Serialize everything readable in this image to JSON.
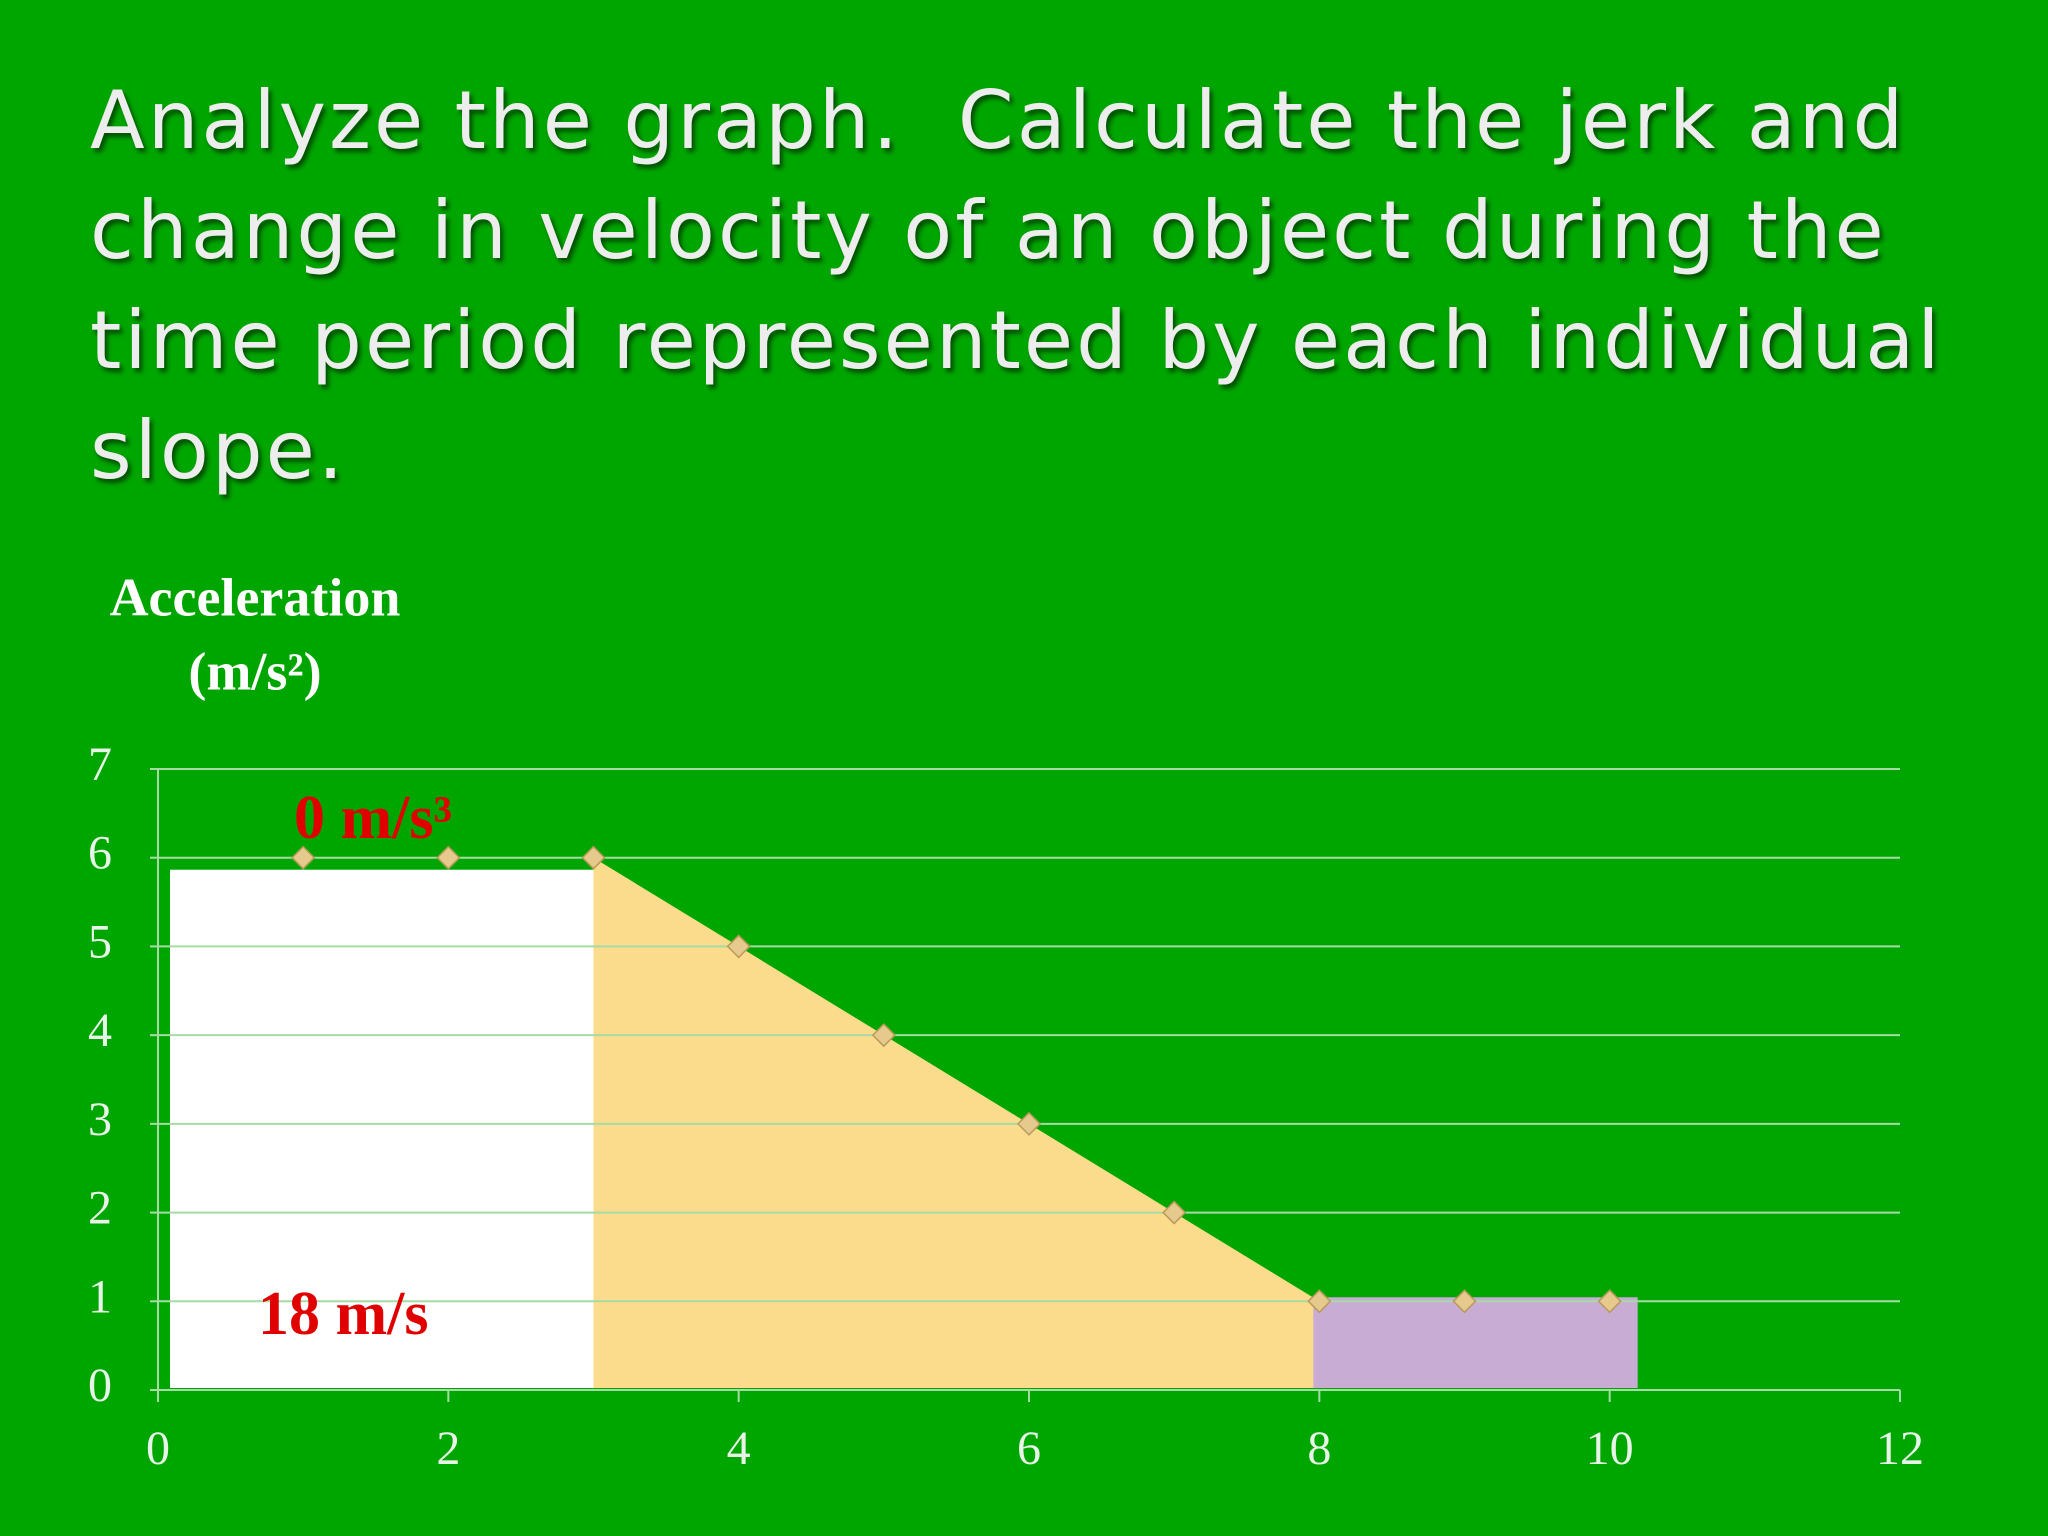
{
  "title": "Analyze the graph.  Calculate the jerk and change in velocity of an object during the time period represented by each individual slope.",
  "chart_data": {
    "type": "scatter",
    "ylabel": [
      "Acceleration",
      "(m/s²)"
    ],
    "x": [
      1,
      2,
      3,
      4,
      5,
      6,
      7,
      8,
      9,
      10
    ],
    "values": [
      6,
      6,
      6,
      5,
      4,
      3,
      2,
      1,
      1,
      1
    ],
    "color": "#e6c98c",
    "xlim": [
      0,
      12
    ],
    "xticks": [
      0,
      2,
      4,
      6,
      8,
      10,
      12
    ],
    "ylim": [
      0,
      7
    ],
    "yticks": [
      0,
      1,
      2,
      3,
      4,
      5,
      6,
      7
    ],
    "grid": true,
    "annotations": [
      "0 m/s³",
      "18 m/s"
    ]
  }
}
